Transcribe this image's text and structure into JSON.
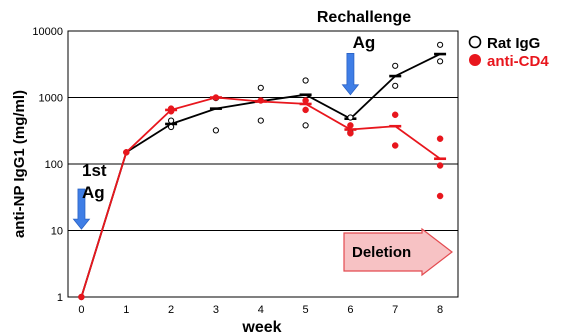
{
  "chart_data": {
    "type": "line",
    "xlabel": "week",
    "ylabel": "anti-NP IgG1 (mg/ml)",
    "yscale": "log",
    "ylim": [
      1,
      10000
    ],
    "xlim": [
      -0.3,
      8.4
    ],
    "x_ticks": [
      "0",
      "1",
      "2",
      "3",
      "4",
      "5",
      "6",
      "7",
      "8"
    ],
    "y_ticks": [
      "1",
      "10",
      "100",
      "1000",
      "10000"
    ],
    "grid": "horizontal",
    "legend_position": "top-right",
    "legend": [
      {
        "label": "Rat IgG",
        "marker": "open-circle",
        "color": "#000000"
      },
      {
        "label": "anti-CD4",
        "marker": "filled-circle",
        "color": "#e8161d"
      }
    ],
    "series": [
      {
        "name": "Rat IgG",
        "color": "#000000",
        "x": [
          0,
          1,
          2,
          3,
          4,
          5,
          6,
          7,
          8
        ],
        "means": [
          1,
          150,
          400,
          680,
          880,
          1100,
          480,
          2100,
          4500
        ],
        "points": [
          [
            0,
            1
          ],
          [
            1,
            150
          ],
          [
            2,
            360
          ],
          [
            2,
            450
          ],
          [
            3,
            320
          ],
          [
            3,
            980
          ],
          [
            4,
            450
          ],
          [
            4,
            1400
          ],
          [
            5,
            380
          ],
          [
            5,
            1800
          ],
          [
            6,
            500
          ],
          [
            6,
            300
          ],
          [
            7,
            3000
          ],
          [
            7,
            1500
          ],
          [
            8,
            6200
          ],
          [
            8,
            3500
          ]
        ]
      },
      {
        "name": "anti-CD4",
        "color": "#e8161d",
        "x": [
          0,
          1,
          2,
          3,
          4,
          5,
          6,
          7,
          8
        ],
        "means": [
          1,
          150,
          650,
          1000,
          870,
          800,
          330,
          370,
          120
        ],
        "points": [
          [
            0,
            1
          ],
          [
            1,
            150
          ],
          [
            2,
            620
          ],
          [
            2,
            680
          ],
          [
            3,
            1000
          ],
          [
            4,
            900
          ],
          [
            5,
            900
          ],
          [
            5,
            650
          ],
          [
            6,
            380
          ],
          [
            6,
            290
          ],
          [
            7,
            550
          ],
          [
            7,
            190
          ],
          [
            8,
            240
          ],
          [
            8,
            95
          ],
          [
            8,
            33
          ]
        ]
      }
    ],
    "annotations": {
      "first_ag_line1": "1st",
      "first_ag_line2": "Ag",
      "rechallenge_line1": "Rechallenge",
      "rechallenge_line2": "Ag",
      "deletion": "Deletion"
    },
    "annotation_arrows": [
      {
        "name": "first-ag-arrow",
        "x": 0,
        "y_from": 42,
        "y_to": 10.5
      },
      {
        "name": "rechallenge-arrow",
        "x": 6,
        "y_from": 4600,
        "y_to": 1100
      }
    ],
    "colors": {
      "arrow_blue": "#3f7ee6",
      "deletion_fill": "#f7c2c4",
      "deletion_stroke": "#e34b50"
    }
  }
}
